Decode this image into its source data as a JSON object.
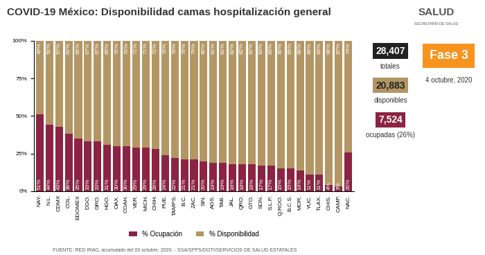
{
  "chart_data": {
    "type": "bar",
    "title": "COVID-19 México: Disponibilidad camas hospitalización general",
    "categories": [
      "NAY.",
      "N.L.",
      "CDMX",
      "COL.",
      "EDOMEX",
      "DGO.",
      "GRO.",
      "HGO.",
      "OAX.",
      "COAH.",
      "VER.",
      "MICH.",
      "CHIH.",
      "PUE.",
      "TAMPS.",
      "B.C.",
      "ZAC.",
      "SIN.",
      "AGS.",
      "TAB.",
      "JAL.",
      "QRO.",
      "GTO.",
      "SON.",
      "S.L.P.",
      "Q.ROO.",
      "B.C.S.",
      "MOR.",
      "YUC.",
      "TLAX.",
      "CHIS.",
      "CAMP.",
      "NAC."
    ],
    "series": [
      {
        "name": "% Ocupación",
        "color": "#8b2343",
        "values": [
          51,
          44,
          43,
          38,
          35,
          33,
          33,
          31,
          30,
          30,
          29,
          29,
          28,
          24,
          22,
          21,
          21,
          20,
          19,
          19,
          18,
          18,
          18,
          17,
          17,
          15,
          15,
          14,
          11,
          11,
          4,
          3,
          26
        ],
        "value_labels": [
          "51%",
          "44%",
          "43%",
          "38%",
          "35%",
          "33%",
          "33%",
          "31%",
          "30%",
          "30%",
          "29%",
          "29%",
          "28%",
          "24%",
          "22%",
          "21%",
          "21%",
          "20%",
          "19%",
          "19%",
          "18%",
          "18%",
          "18%",
          "17%",
          "17%",
          "15%",
          "15%",
          "14%",
          "11%",
          "11%",
          "4%",
          "3%",
          "26%"
        ]
      },
      {
        "name": "% Disponibilidad",
        "color": "#b39664",
        "values": [
          49,
          56,
          57,
          62,
          65,
          67,
          67,
          69,
          70,
          70,
          71,
          71,
          72,
          76,
          78,
          79,
          79,
          80,
          81,
          81,
          82,
          82,
          82,
          83,
          83,
          85,
          85,
          86,
          89,
          89,
          96,
          97,
          74
        ],
        "value_labels": [
          "49%",
          "56%",
          "57%",
          "62%",
          "65%",
          "67%",
          "67%",
          "69%",
          "70%",
          "70%",
          "71%",
          "71%",
          "72%",
          "76%",
          "78%",
          "79%",
          "79%",
          "80%",
          "81%",
          "81%",
          "82%",
          "82%",
          "82%",
          "83%",
          "83%",
          "85%",
          "85%",
          "86%",
          "89%",
          "89%",
          "96%",
          "97%",
          "74%"
        ]
      }
    ],
    "stacked": true,
    "data_labels": true,
    "grid": false,
    "legend": "lower center",
    "ylim": [
      0,
      100
    ],
    "yticks": [
      {
        "value": 0,
        "label": "0%"
      },
      {
        "value": 25,
        "label": "25%"
      },
      {
        "value": 50,
        "label": "50%"
      },
      {
        "value": 75,
        "label": "75%"
      },
      {
        "value": 100,
        "label": "100%"
      }
    ],
    "annotations": [
      "SALUD",
      "SECRETARÍA DE SALUD",
      "28,407",
      "totales",
      "20,883",
      "disponibles",
      "7,524",
      "ocupadas (26%)",
      "Fase 3",
      "4 octubre, 2020",
      "FUENTE: RED IRAG, acumulado del 03 octubre, 2020. - SSA/SPPS/DGTI/SERVICIOS DE SALUD ESTATALES"
    ]
  }
}
